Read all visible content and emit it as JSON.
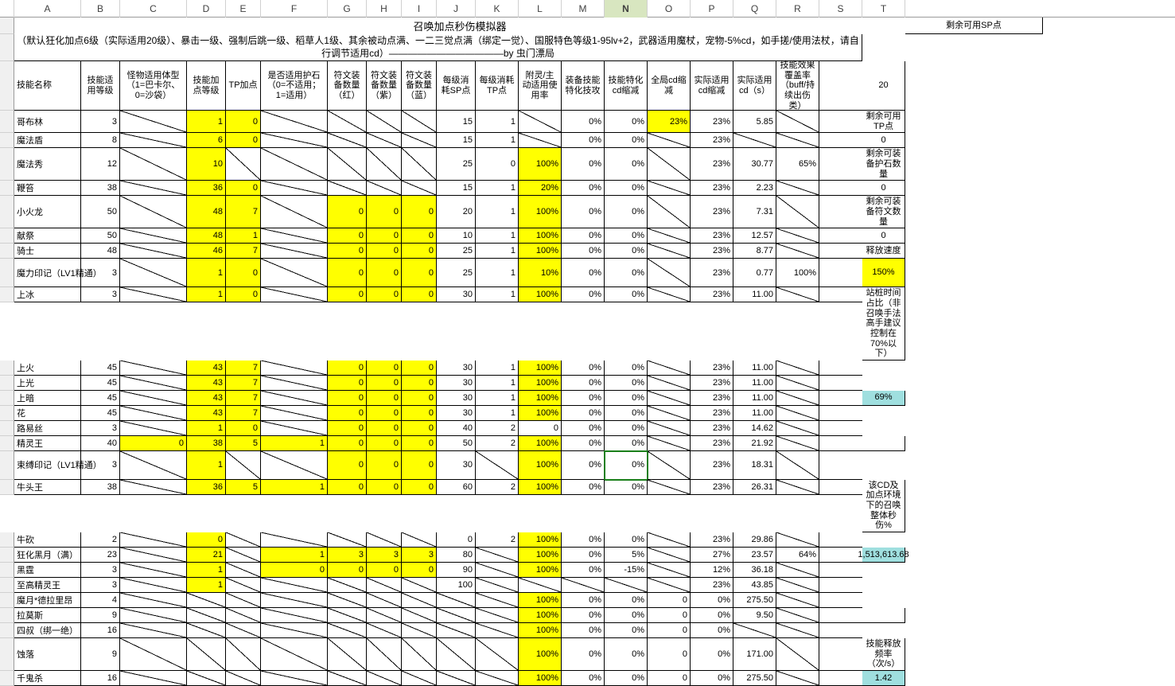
{
  "columns": [
    "",
    "A",
    "B",
    "C",
    "D",
    "E",
    "F",
    "G",
    "H",
    "I",
    "J",
    "K",
    "L",
    "M",
    "N",
    "O",
    "P",
    "Q",
    "R",
    "S",
    "T"
  ],
  "selectedCol": 14,
  "title": "召唤加点秒伤模拟器",
  "subtitle": "（默认狂化加点6级（实际适用20级）、暴击一级、强制后跳一级、稻草人1级、其余被动点满、一二三觉点满（绑定一觉）、国服特色等级1-95lv+2，武器适用魔杖，宠物-5%cd，如手搓/使用法杖，请自行调节适用cd）————————————by 虫门漂局",
  "headers": {
    "A": "技能名称",
    "B": "技能适用等级",
    "C": "怪物适用体型（1=巴卡尔、0=沙袋）",
    "D": "技能加点等级",
    "E": "TP加点",
    "F": "是否适用护石（0=不适用；1=适用）",
    "G": "符文装备数量（红）",
    "H": "符文装备数量（紫）",
    "I": "符文装备数量（蓝）",
    "J": "每级消耗SP点",
    "K": "每级消耗TP点",
    "L": "附灵/主动适用使用率",
    "M": "装备技能特化技攻",
    "N": "技能特化cd缩减",
    "O": "全局cd缩减",
    "P": "实际适用cd缩减",
    "Q": "实际适用cd（s）",
    "R": "技能效果覆盖率（buff/持续出伤类）",
    "T": "剩余可用SP点"
  },
  "side": {
    "sp_val": "20",
    "tp_label": "剩余可用TP点",
    "tp_val": "0",
    "stone_label": "剩余可装备护石数量",
    "stone_val": "0",
    "rune_label": "剩余可装备符文数量",
    "rune_val": "0",
    "speed_label": "释放速度",
    "speed_val": "150%",
    "stance_label": "站桩时间占比（非召唤手法高手建议控制在70%以下）",
    "stance_val": "69%",
    "dps_label": "该CD及加点环境下的召唤整体秒伤%",
    "dps_val": "1,513,613.68",
    "freq_label": "技能释放频率（次/s）",
    "freq_val": "1.42"
  },
  "colors": {
    "yellow": "#ffff00",
    "cyan": "#9fdfdf",
    "selGreen": "#1a7f1a",
    "colSel": "#d8e6c0"
  },
  "rows": [
    {
      "A": "哥布林",
      "B": "3",
      "C": "/",
      "D": "1",
      "E": "0",
      "F": "/",
      "G": "/",
      "H": "/",
      "I": "/",
      "J": "15",
      "K": "1",
      "L": "/",
      "M": "0%",
      "N": "0%",
      "O": "23%",
      "P": "23%",
      "Q": "5.85",
      "R": "/",
      "yD": 1,
      "yE": 1,
      "yO": 1
    },
    {
      "A": "魔法盾",
      "B": "8",
      "C": "/",
      "D": "6",
      "E": "0",
      "F": "/",
      "G": "/",
      "H": "/",
      "I": "/",
      "J": "15",
      "K": "1",
      "L": "/",
      "M": "0%",
      "N": "0%",
      "O": "/",
      "P": "23%",
      "Q": "/",
      "R": "/",
      "yD": 1,
      "yE": 1
    },
    {
      "A": "魔法秀",
      "B": "12",
      "C": "/",
      "D": "10",
      "E": "/",
      "F": "/",
      "G": "/",
      "H": "/",
      "I": "/",
      "J": "25",
      "K": "0",
      "L": "100%",
      "M": "0%",
      "N": "0%",
      "O": "/",
      "P": "23%",
      "Q": "30.77",
      "R": "65%",
      "yD": 1,
      "yL": 1
    },
    {
      "A": "鞭笞",
      "B": "38",
      "C": "/",
      "D": "36",
      "E": "0",
      "F": "/",
      "G": "/",
      "H": "/",
      "I": "/",
      "J": "15",
      "K": "1",
      "L": "20%",
      "M": "0%",
      "N": "0%",
      "O": "/",
      "P": "23%",
      "Q": "2.23",
      "R": "/",
      "yD": 1,
      "yE": 1,
      "yL": 1
    },
    {
      "A": "小火龙",
      "B": "50",
      "C": "/",
      "D": "48",
      "E": "7",
      "F": "/",
      "G": "0",
      "H": "0",
      "I": "0",
      "J": "20",
      "K": "1",
      "L": "100%",
      "M": "0%",
      "N": "0%",
      "O": "/",
      "P": "23%",
      "Q": "7.31",
      "R": "/",
      "yD": 1,
      "yE": 1,
      "yG": 1,
      "yH": 1,
      "yI": 1,
      "yL": 1
    },
    {
      "A": "献祭",
      "B": "50",
      "C": "/",
      "D": "48",
      "E": "1",
      "F": "/",
      "G": "0",
      "H": "0",
      "I": "0",
      "J": "10",
      "K": "1",
      "L": "100%",
      "M": "0%",
      "N": "0%",
      "O": "/",
      "P": "23%",
      "Q": "12.57",
      "R": "/",
      "yD": 1,
      "yE": 1,
      "yG": 1,
      "yH": 1,
      "yI": 1,
      "yL": 1
    },
    {
      "A": "骑士",
      "B": "48",
      "C": "/",
      "D": "46",
      "E": "7",
      "F": "/",
      "G": "0",
      "H": "0",
      "I": "0",
      "J": "25",
      "K": "1",
      "L": "100%",
      "M": "0%",
      "N": "0%",
      "O": "/",
      "P": "23%",
      "Q": "8.77",
      "R": "/",
      "yD": 1,
      "yE": 1,
      "yG": 1,
      "yH": 1,
      "yI": 1,
      "yL": 1
    },
    {
      "A": "魔力印记（LV1精通）",
      "B": "3",
      "C": "/",
      "D": "1",
      "E": "0",
      "F": "/",
      "G": "0",
      "H": "0",
      "I": "0",
      "J": "25",
      "K": "1",
      "L": "10%",
      "M": "0%",
      "N": "0%",
      "O": "/",
      "P": "23%",
      "Q": "0.77",
      "R": "100%",
      "yD": 1,
      "yE": 1,
      "yG": 1,
      "yH": 1,
      "yI": 1,
      "yL": 1,
      "tall": 1
    },
    {
      "A": "上冰",
      "B": "3",
      "C": "/",
      "D": "1",
      "E": "0",
      "F": "/",
      "G": "0",
      "H": "0",
      "I": "0",
      "J": "30",
      "K": "1",
      "L": "100%",
      "M": "0%",
      "N": "0%",
      "O": "/",
      "P": "23%",
      "Q": "11.00",
      "R": "/",
      "yD": 1,
      "yE": 1,
      "yG": 1,
      "yH": 1,
      "yI": 1,
      "yL": 1
    },
    {
      "A": "上火",
      "B": "45",
      "C": "/",
      "D": "43",
      "E": "7",
      "F": "/",
      "G": "0",
      "H": "0",
      "I": "0",
      "J": "30",
      "K": "1",
      "L": "100%",
      "M": "0%",
      "N": "0%",
      "O": "/",
      "P": "23%",
      "Q": "11.00",
      "R": "/",
      "yD": 1,
      "yE": 1,
      "yG": 1,
      "yH": 1,
      "yI": 1,
      "yL": 1
    },
    {
      "A": "上光",
      "B": "45",
      "C": "/",
      "D": "43",
      "E": "7",
      "F": "/",
      "G": "0",
      "H": "0",
      "I": "0",
      "J": "30",
      "K": "1",
      "L": "100%",
      "M": "0%",
      "N": "0%",
      "O": "/",
      "P": "23%",
      "Q": "11.00",
      "R": "/",
      "yD": 1,
      "yE": 1,
      "yG": 1,
      "yH": 1,
      "yI": 1,
      "yL": 1
    },
    {
      "A": "上暗",
      "B": "45",
      "C": "/",
      "D": "43",
      "E": "7",
      "F": "/",
      "G": "0",
      "H": "0",
      "I": "0",
      "J": "30",
      "K": "1",
      "L": "100%",
      "M": "0%",
      "N": "0%",
      "O": "/",
      "P": "23%",
      "Q": "11.00",
      "R": "/",
      "yD": 1,
      "yE": 1,
      "yG": 1,
      "yH": 1,
      "yI": 1,
      "yL": 1
    },
    {
      "A": "花",
      "B": "45",
      "C": "/",
      "D": "43",
      "E": "7",
      "F": "/",
      "G": "0",
      "H": "0",
      "I": "0",
      "J": "30",
      "K": "1",
      "L": "100%",
      "M": "0%",
      "N": "0%",
      "O": "/",
      "P": "23%",
      "Q": "11.00",
      "R": "/",
      "yD": 1,
      "yE": 1,
      "yG": 1,
      "yH": 1,
      "yI": 1,
      "yL": 1
    },
    {
      "A": "路易丝",
      "B": "3",
      "C": "/",
      "D": "1",
      "E": "0",
      "F": "/",
      "G": "0",
      "H": "0",
      "I": "0",
      "J": "40",
      "K": "2",
      "L": "0",
      "M": "0%",
      "N": "0%",
      "O": "/",
      "P": "23%",
      "Q": "14.62",
      "R": "/",
      "yD": 1,
      "yE": 1,
      "yG": 1,
      "yH": 1,
      "yI": 1
    },
    {
      "A": "精灵王",
      "B": "40",
      "C": "0",
      "D": "38",
      "E": "5",
      "F": "1",
      "G": "0",
      "H": "0",
      "I": "0",
      "J": "50",
      "K": "2",
      "L": "100%",
      "M": "0%",
      "N": "0%",
      "O": "/",
      "P": "23%",
      "Q": "21.92",
      "R": "/",
      "yC": 1,
      "yD": 1,
      "yE": 1,
      "yF": 1,
      "yG": 1,
      "yH": 1,
      "yI": 1,
      "yL": 1
    },
    {
      "A": "束缚印记（LV1精通）",
      "B": "3",
      "C": "/",
      "D": "1",
      "E": "/",
      "F": "/",
      "G": "0",
      "H": "0",
      "I": "0",
      "J": "30",
      "K": "/",
      "L": "100%",
      "M": "0%",
      "N": "0%",
      "O": "/",
      "P": "23%",
      "Q": "18.31",
      "R": "/",
      "yD": 1,
      "yG": 1,
      "yH": 1,
      "yI": 1,
      "yL": 1,
      "sel": 1,
      "tall": 1
    },
    {
      "A": "牛头王",
      "B": "38",
      "C": "/",
      "D": "36",
      "E": "5",
      "F": "1",
      "G": "0",
      "H": "0",
      "I": "0",
      "J": "60",
      "K": "2",
      "L": "100%",
      "M": "0%",
      "N": "0%",
      "O": "/",
      "P": "23%",
      "Q": "26.31",
      "R": "/",
      "yD": 1,
      "yE": 1,
      "yF": 1,
      "yG": 1,
      "yH": 1,
      "yI": 1,
      "yL": 1
    },
    {
      "A": "牛砍",
      "B": "2",
      "C": "/",
      "D": "0",
      "E": "/",
      "F": "/",
      "G": "/",
      "H": "/",
      "I": "/",
      "J": "0",
      "K": "2",
      "L": "100%",
      "M": "0%",
      "N": "0%",
      "O": "/",
      "P": "23%",
      "Q": "29.86",
      "R": "/",
      "yD": 1,
      "yL": 1
    },
    {
      "A": "狂化黑月（满）",
      "B": "23",
      "C": "/",
      "D": "21",
      "E": "/",
      "F": "1",
      "G": "3",
      "H": "3",
      "I": "3",
      "J": "80",
      "K": "/",
      "L": "100%",
      "M": "0%",
      "N": "5%",
      "O": "/",
      "P": "27%",
      "Q": "23.57",
      "R": "64%",
      "yD": 1,
      "yF": 1,
      "yG": 1,
      "yH": 1,
      "yI": 1,
      "yL": 1
    },
    {
      "A": "黑霆",
      "B": "3",
      "C": "/",
      "D": "1",
      "E": "/",
      "F": "0",
      "G": "0",
      "H": "0",
      "I": "0",
      "J": "90",
      "K": "/",
      "L": "100%",
      "M": "0%",
      "N": "-15%",
      "O": "/",
      "P": "12%",
      "Q": "36.18",
      "R": "/",
      "yD": 1,
      "yF": 1,
      "yG": 1,
      "yH": 1,
      "yI": 1,
      "yL": 1
    },
    {
      "A": "至高精灵王",
      "B": "3",
      "C": "/",
      "D": "1",
      "E": "/",
      "F": "/",
      "G": "/",
      "H": "/",
      "I": "/",
      "J": "100",
      "K": "/",
      "L": "/",
      "M": "/",
      "N": "/",
      "O": "/",
      "P": "23%",
      "Q": "43.85",
      "R": "/",
      "yD": 1
    },
    {
      "A": "魔月*德拉里昂",
      "B": "4",
      "C": "/",
      "D": "/",
      "E": "/",
      "F": "/",
      "G": "/",
      "H": "/",
      "I": "/",
      "J": "/",
      "K": "/",
      "L": "100%",
      "M": "0%",
      "N": "0%",
      "O": "0",
      "P": "0%",
      "Q": "275.50",
      "R": "/",
      "yL": 1
    },
    {
      "A": "拉莫斯",
      "B": "9",
      "C": "/",
      "D": "/",
      "E": "/",
      "F": "/",
      "G": "/",
      "H": "/",
      "I": "/",
      "J": "/",
      "K": "/",
      "L": "100%",
      "M": "0%",
      "N": "0%",
      "O": "0",
      "P": "0%",
      "Q": "9.50",
      "R": "/",
      "yL": 1
    },
    {
      "A": "四叔（绑一绝）",
      "B": "16",
      "C": "/",
      "D": "/",
      "E": "/",
      "F": "/",
      "G": "/",
      "H": "/",
      "I": "/",
      "J": "/",
      "K": "/",
      "L": "100%",
      "M": "0%",
      "N": "0%",
      "O": "0",
      "P": "0%",
      "Q": "/",
      "R": "/",
      "yL": 1
    },
    {
      "A": "蚀落",
      "B": "9",
      "C": "/",
      "D": "/",
      "E": "/",
      "F": "/",
      "G": "/",
      "H": "/",
      "I": "/",
      "J": "/",
      "K": "/",
      "L": "100%",
      "M": "0%",
      "N": "0%",
      "O": "0",
      "P": "0%",
      "Q": "171.00",
      "R": "/",
      "yL": 1
    },
    {
      "A": "千鬼杀",
      "B": "16",
      "C": "/",
      "D": "/",
      "E": "/",
      "F": "/",
      "G": "/",
      "H": "/",
      "I": "/",
      "J": "/",
      "K": "/",
      "L": "100%",
      "M": "0%",
      "N": "0%",
      "O": "0",
      "P": "0%",
      "Q": "275.50",
      "R": "/",
      "yL": 1
    }
  ]
}
